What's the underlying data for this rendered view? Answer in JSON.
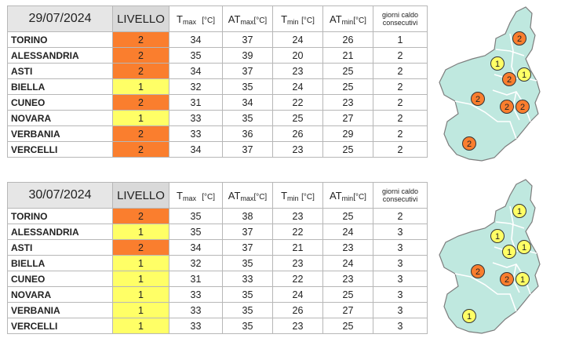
{
  "header": {
    "level": "LIVELLO",
    "tmax": {
      "t": "T",
      "sub": "max",
      "unit": "[°C]"
    },
    "atmax": {
      "t": "AT",
      "sub": "max",
      "unit": "[°C]"
    },
    "tmin": {
      "t": "T",
      "sub": "min",
      "unit": "[°C]"
    },
    "atmin": {
      "t": "AT",
      "sub": "min",
      "unit": "[°C]"
    },
    "days": [
      "giorni caldo",
      "consecutivi"
    ]
  },
  "tables": [
    {
      "date": "29/07/2024",
      "rows": [
        {
          "city": "TORINO",
          "level": "2",
          "tmax": "34",
          "atmax": "37",
          "tmin": "24",
          "atmin": "26",
          "days": "1"
        },
        {
          "city": "ALESSANDRIA",
          "level": "2",
          "tmax": "35",
          "atmax": "39",
          "tmin": "20",
          "atmin": "21",
          "days": "2"
        },
        {
          "city": "ASTI",
          "level": "2",
          "tmax": "34",
          "atmax": "37",
          "tmin": "23",
          "atmin": "25",
          "days": "2"
        },
        {
          "city": "BIELLA",
          "level": "1",
          "tmax": "32",
          "atmax": "35",
          "tmin": "24",
          "atmin": "25",
          "days": "2"
        },
        {
          "city": "CUNEO",
          "level": "2",
          "tmax": "31",
          "atmax": "34",
          "tmin": "22",
          "atmin": "23",
          "days": "2"
        },
        {
          "city": "NOVARA",
          "level": "1",
          "tmax": "33",
          "atmax": "35",
          "tmin": "25",
          "atmin": "27",
          "days": "2"
        },
        {
          "city": "VERBANIA",
          "level": "2",
          "tmax": "33",
          "atmax": "36",
          "tmin": "26",
          "atmin": "29",
          "days": "2"
        },
        {
          "city": "VERCELLI",
          "level": "2",
          "tmax": "34",
          "atmax": "37",
          "tmin": "23",
          "atmin": "25",
          "days": "2"
        }
      ],
      "map_markers": [
        {
          "label": "2",
          "level": 2
        },
        {
          "label": "1",
          "level": 1
        },
        {
          "label": "2",
          "level": 2
        },
        {
          "label": "1",
          "level": 1
        },
        {
          "label": "2",
          "level": 2
        },
        {
          "label": "2",
          "level": 2
        },
        {
          "label": "2",
          "level": 2
        },
        {
          "label": "2",
          "level": 2
        }
      ]
    },
    {
      "date": "30/07/2024",
      "rows": [
        {
          "city": "TORINO",
          "level": "2",
          "tmax": "35",
          "atmax": "38",
          "tmin": "23",
          "atmin": "25",
          "days": "2"
        },
        {
          "city": "ALESSANDRIA",
          "level": "1",
          "tmax": "35",
          "atmax": "37",
          "tmin": "22",
          "atmin": "24",
          "days": "3"
        },
        {
          "city": "ASTI",
          "level": "2",
          "tmax": "34",
          "atmax": "37",
          "tmin": "21",
          "atmin": "23",
          "days": "3"
        },
        {
          "city": "BIELLA",
          "level": "1",
          "tmax": "32",
          "atmax": "35",
          "tmin": "23",
          "atmin": "24",
          "days": "3"
        },
        {
          "city": "CUNEO",
          "level": "1",
          "tmax": "31",
          "atmax": "33",
          "tmin": "22",
          "atmin": "23",
          "days": "3"
        },
        {
          "city": "NOVARA",
          "level": "1",
          "tmax": "33",
          "atmax": "35",
          "tmin": "24",
          "atmin": "25",
          "days": "3"
        },
        {
          "city": "VERBANIA",
          "level": "1",
          "tmax": "33",
          "atmax": "35",
          "tmin": "26",
          "atmin": "27",
          "days": "3"
        },
        {
          "city": "VERCELLI",
          "level": "1",
          "tmax": "33",
          "atmax": "35",
          "tmin": "23",
          "atmin": "25",
          "days": "3"
        }
      ],
      "map_markers": [
        {
          "label": "1",
          "level": 1
        },
        {
          "label": "1",
          "level": 1
        },
        {
          "label": "1",
          "level": 1
        },
        {
          "label": "1",
          "level": 1
        },
        {
          "label": "2",
          "level": 2
        },
        {
          "label": "2",
          "level": 2
        },
        {
          "label": "1",
          "level": 1
        },
        {
          "label": "1",
          "level": 1
        }
      ]
    }
  ],
  "colors": {
    "level1": "#ffff66",
    "level2": "#fa7e2e",
    "date_bg": "#e6e6e6",
    "level_header_bg": "#d9d9d9",
    "map_fill": "#bfe8df",
    "map_stroke": "#7d7d7d"
  }
}
